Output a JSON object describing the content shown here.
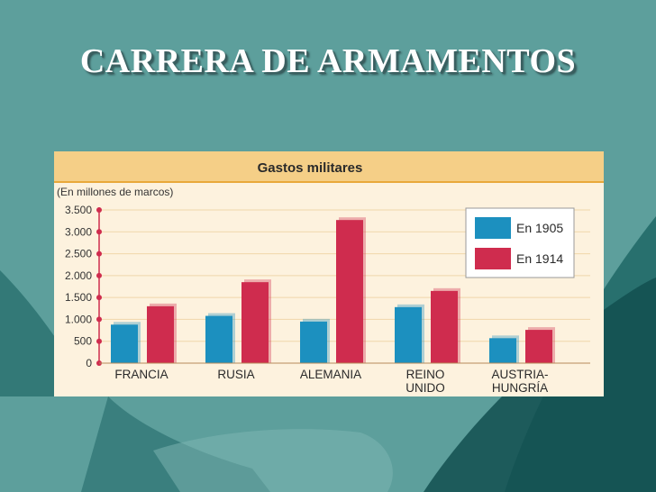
{
  "slide": {
    "title": "CARRERA DE ARMAMENTOS",
    "background_color": "#5d9f9c"
  },
  "chart_data": {
    "type": "bar",
    "title": "Gastos militares",
    "ylabel": "(En millones de marcos)",
    "xlabel": "",
    "categories": [
      "FRANCIA",
      "RUSIA",
      "ALEMANIA",
      "REINO UNIDO",
      "AUSTRIA-HUNGRÍA"
    ],
    "category_lines": [
      [
        "FRANCIA"
      ],
      [
        "RUSIA"
      ],
      [
        "ALEMANIA"
      ],
      [
        "REINO",
        "UNIDO"
      ],
      [
        "AUSTRIA-",
        "HUNGRÍA"
      ]
    ],
    "series": [
      {
        "name": "En 1905",
        "values": [
          880,
          1080,
          950,
          1280,
          570
        ],
        "color": "#1c90bf"
      },
      {
        "name": "En 1914",
        "values": [
          1300,
          1850,
          3270,
          1650,
          760
        ],
        "color": "#cf2c4e"
      }
    ],
    "ylim": [
      0,
      3500
    ],
    "yticks": [
      0,
      500,
      1000,
      1500,
      2000,
      2500,
      3000,
      3500
    ],
    "ytick_labels": [
      "0",
      "500",
      "1.000",
      "1.500",
      "2.000",
      "2.500",
      "3.000",
      "3.500"
    ],
    "grid": true,
    "legend_position": "top-right"
  }
}
